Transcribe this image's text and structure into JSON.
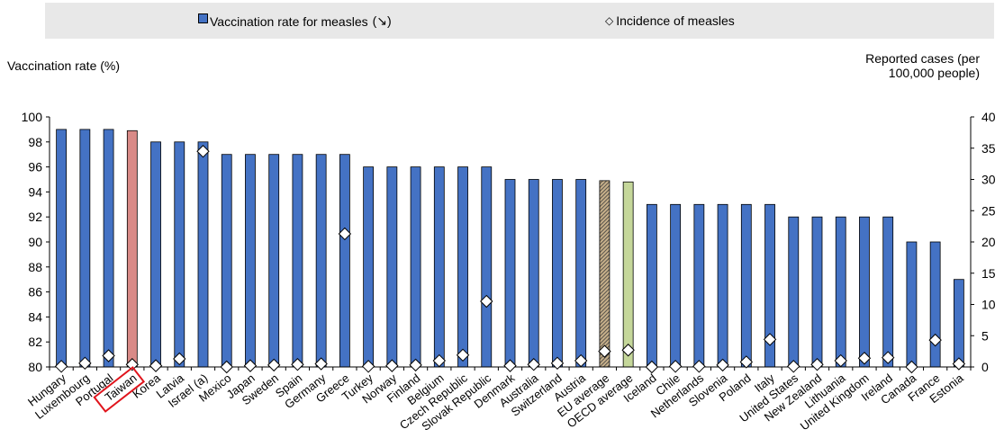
{
  "legend": {
    "bar_label": "Vaccination rate for measles",
    "bar_arrow": "(↘)",
    "diamond_glyph": "◇",
    "diamond_label": "Incidence of measles"
  },
  "axes": {
    "left_title": "Vaccination rate (%)",
    "right_title_line1": "Reported cases (per",
    "right_title_line2": "100,000 people)"
  },
  "colors": {
    "bar": "#4472c4",
    "highlight_bar": "#d98a87",
    "eu_bar": "#c7b08a",
    "oecd_bar": "#c5d79a",
    "highlight_box": "#e0141c",
    "legend_bg": "#e8e8e8"
  },
  "chart_data": {
    "type": "bar",
    "categories": [
      "Hungary",
      "Luxembourg",
      "Portugal",
      "Taiwan",
      "Korea",
      "Latvia",
      "Israel (a)",
      "Mexico",
      "Japan",
      "Sweden",
      "Spain",
      "Germany",
      "Greece",
      "Turkey",
      "Norway",
      "Finland",
      "Belgium",
      "Czech Republic",
      "Slovak Republic",
      "Denmark",
      "Australia",
      "Switzerland",
      "Austria",
      "EU average",
      "OECD average",
      "Iceland",
      "Chile",
      "Netherlands",
      "Slovenia",
      "Poland",
      "Italy",
      "United States",
      "New Zealand",
      "Lithuania",
      "United Kingdom",
      "Ireland",
      "Canada",
      "France",
      "Estonia"
    ],
    "series": [
      {
        "name": "Vaccination rate for measles",
        "axis": "left",
        "values": [
          99,
          99,
          99,
          98.9,
          98,
          98,
          98,
          97,
          97,
          97,
          97,
          97,
          97,
          96,
          96,
          96,
          96,
          96,
          96,
          95,
          95,
          95,
          95,
          94.9,
          94.8,
          93,
          93,
          93,
          93,
          93,
          93,
          92,
          92,
          92,
          92,
          92,
          90,
          90,
          87
        ]
      },
      {
        "name": "Incidence of measles",
        "axis": "right",
        "values": [
          0.1,
          0.6,
          1.8,
          0.4,
          0.2,
          1.3,
          34.5,
          0.0,
          0.2,
          0.3,
          0.4,
          0.5,
          21.3,
          0.1,
          0.2,
          0.3,
          1.0,
          1.9,
          10.5,
          0.2,
          0.4,
          0.6,
          1.0,
          2.5,
          2.7,
          0.0,
          0.1,
          0.1,
          0.3,
          0.8,
          4.4,
          0.1,
          0.4,
          1.0,
          1.4,
          1.5,
          0.0,
          4.3,
          0.5
        ]
      }
    ],
    "highlight": "Taiwan",
    "ylim_left": [
      80,
      100
    ],
    "yticks_left": [
      80,
      82,
      84,
      86,
      88,
      90,
      92,
      94,
      96,
      98,
      100
    ],
    "ylim_right": [
      0,
      40
    ],
    "yticks_right": [
      0,
      5,
      10,
      15,
      20,
      25,
      30,
      35,
      40
    ]
  }
}
